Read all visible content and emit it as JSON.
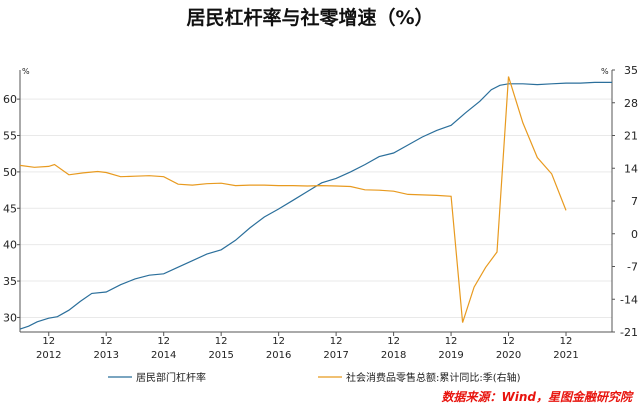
{
  "chart_data": {
    "type": "line",
    "title": "居民杠杆率与社零增速（%）",
    "left_unit": "%",
    "right_unit": "%",
    "y_left": {
      "min": 28,
      "max": 64,
      "ticks": [
        30,
        35,
        40,
        45,
        50,
        55,
        60
      ]
    },
    "y_right": {
      "min": -21,
      "max": 35,
      "ticks": [
        -21,
        -14,
        -7,
        0,
        7,
        14,
        21,
        28,
        35
      ]
    },
    "x_range": [
      2011.45,
      2021.75
    ],
    "x_ticks": [
      {
        "x": 2011.95,
        "month": "12",
        "year": "2012"
      },
      {
        "x": 2012.95,
        "month": "12",
        "year": "2013"
      },
      {
        "x": 2013.95,
        "month": "12",
        "year": "2014"
      },
      {
        "x": 2014.95,
        "month": "12",
        "year": "2015"
      },
      {
        "x": 2015.95,
        "month": "12",
        "year": "2016"
      },
      {
        "x": 2016.95,
        "month": "12",
        "year": "2017"
      },
      {
        "x": 2017.95,
        "month": "12",
        "year": "2018"
      },
      {
        "x": 2018.95,
        "month": "12",
        "year": "2019"
      },
      {
        "x": 2019.95,
        "month": "12",
        "year": "2020"
      },
      {
        "x": 2020.95,
        "month": "12",
        "year": "2021"
      }
    ],
    "grid": true,
    "legend_placement": "bottom",
    "series": [
      {
        "name": "居民部门杠杆率",
        "axis": "left",
        "color": "#2b6f9b",
        "points": [
          [
            2011.45,
            28.4
          ],
          [
            2011.6,
            28.8
          ],
          [
            2011.75,
            29.4
          ],
          [
            2011.95,
            29.9
          ],
          [
            2012.1,
            30.1
          ],
          [
            2012.3,
            31.0
          ],
          [
            2012.5,
            32.2
          ],
          [
            2012.7,
            33.3
          ],
          [
            2012.95,
            33.5
          ],
          [
            2013.2,
            34.5
          ],
          [
            2013.45,
            35.3
          ],
          [
            2013.7,
            35.8
          ],
          [
            2013.95,
            36.0
          ],
          [
            2014.2,
            36.9
          ],
          [
            2014.45,
            37.8
          ],
          [
            2014.7,
            38.7
          ],
          [
            2014.95,
            39.3
          ],
          [
            2015.2,
            40.6
          ],
          [
            2015.45,
            42.3
          ],
          [
            2015.7,
            43.8
          ],
          [
            2015.95,
            44.9
          ],
          [
            2016.2,
            46.1
          ],
          [
            2016.45,
            47.3
          ],
          [
            2016.7,
            48.5
          ],
          [
            2016.95,
            49.1
          ],
          [
            2017.2,
            50.0
          ],
          [
            2017.45,
            51.0
          ],
          [
            2017.7,
            52.1
          ],
          [
            2017.95,
            52.6
          ],
          [
            2018.2,
            53.7
          ],
          [
            2018.45,
            54.8
          ],
          [
            2018.7,
            55.7
          ],
          [
            2018.95,
            56.4
          ],
          [
            2019.2,
            58.1
          ],
          [
            2019.45,
            59.7
          ],
          [
            2019.65,
            61.3
          ],
          [
            2019.8,
            61.9
          ],
          [
            2019.95,
            62.1
          ],
          [
            2020.2,
            62.1
          ],
          [
            2020.45,
            62.0
          ],
          [
            2020.7,
            62.1
          ],
          [
            2020.95,
            62.2
          ],
          [
            2021.2,
            62.2
          ],
          [
            2021.45,
            62.3
          ],
          [
            2021.75,
            62.3
          ]
        ]
      },
      {
        "name": "社会消费品零售总额:累计同比:季(右轴)",
        "axis": "right",
        "color": "#e89a1f",
        "points": [
          [
            2011.45,
            14.6
          ],
          [
            2011.7,
            14.2
          ],
          [
            2011.95,
            14.4
          ],
          [
            2012.05,
            14.8
          ],
          [
            2012.3,
            12.6
          ],
          [
            2012.55,
            13.0
          ],
          [
            2012.8,
            13.3
          ],
          [
            2012.95,
            13.1
          ],
          [
            2013.2,
            12.2
          ],
          [
            2013.45,
            12.3
          ],
          [
            2013.7,
            12.4
          ],
          [
            2013.95,
            12.2
          ],
          [
            2014.2,
            10.6
          ],
          [
            2014.45,
            10.4
          ],
          [
            2014.7,
            10.7
          ],
          [
            2014.95,
            10.8
          ],
          [
            2015.2,
            10.3
          ],
          [
            2015.45,
            10.4
          ],
          [
            2015.7,
            10.4
          ],
          [
            2015.95,
            10.3
          ],
          [
            2016.2,
            10.3
          ],
          [
            2016.45,
            10.2
          ],
          [
            2016.7,
            10.3
          ],
          [
            2016.95,
            10.2
          ],
          [
            2017.2,
            10.1
          ],
          [
            2017.45,
            9.4
          ],
          [
            2017.7,
            9.3
          ],
          [
            2017.95,
            9.1
          ],
          [
            2018.2,
            8.4
          ],
          [
            2018.45,
            8.3
          ],
          [
            2018.7,
            8.2
          ],
          [
            2018.95,
            8.0
          ],
          [
            2019.15,
            -19.0
          ],
          [
            2019.35,
            -11.4
          ],
          [
            2019.55,
            -7.2
          ],
          [
            2019.75,
            -3.9
          ],
          [
            2019.95,
            33.6
          ],
          [
            2020.2,
            23.7
          ],
          [
            2020.45,
            16.3
          ],
          [
            2020.7,
            12.8
          ],
          [
            2020.95,
            5.0
          ]
        ]
      }
    ],
    "source": "数据来源：Wind，星图金融研究院"
  }
}
